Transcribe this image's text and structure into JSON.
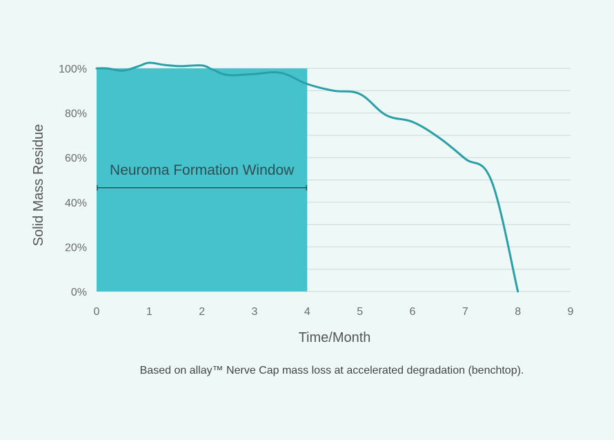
{
  "chart_data": {
    "type": "line",
    "xlabel": "Time/Month",
    "ylabel": "Solid Mass Residue",
    "xlim": [
      0,
      9
    ],
    "ylim": [
      0,
      100
    ],
    "x_ticks": [
      "0",
      "1",
      "2",
      "3",
      "4",
      "5",
      "6",
      "7",
      "8",
      "9"
    ],
    "y_ticks": [
      "0%",
      "20%",
      "40%",
      "60%",
      "80%",
      "100%"
    ],
    "grid": "horizontal",
    "series": [
      {
        "color": "#2a9fa8",
        "x": [
          0,
          0.2,
          0.5,
          0.8,
          1.0,
          1.3,
          1.6,
          2.0,
          2.2,
          2.5,
          3.0,
          3.5,
          4.0,
          4.5,
          5.0,
          5.5,
          6.0,
          6.5,
          7.0,
          7.5,
          8.0
        ],
        "y": [
          100,
          100,
          99,
          101,
          102.5,
          101.5,
          101,
          101.3,
          99.5,
          97,
          97.5,
          98,
          93,
          90,
          88.5,
          79,
          76,
          69,
          59.5,
          49.5,
          0
        ]
      }
    ],
    "highlight_region": {
      "label": "Neuroma Formation Window",
      "x_start": 0,
      "x_end": 4,
      "y_top": 100,
      "bracket_y": 46.5,
      "color": "#45c2cc"
    }
  },
  "footnote": "Based on allay™ Nerve Cap mass loss at accelerated degradation (benchtop)."
}
